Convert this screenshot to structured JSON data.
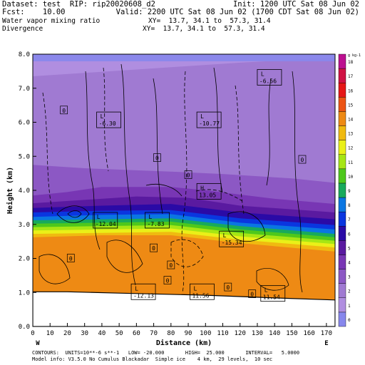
{
  "header": {
    "dataset": "Dataset: test  RIP: rip20020608_d2",
    "init": "Init: 1200 UTC Sat 08 Jun 02",
    "fcst": "Fcst:    10.00",
    "valid": "Valid: 2200 UTC Sat 08 Jun 02 (1700 CDT Sat 08 Jun 02)",
    "field1": "Water vapor mixing ratio",
    "xy1": "XY=  13.7, 34.1 to  57.3, 31.4",
    "field2": "Divergence",
    "xy2": "XY=  13.7, 34.1 to  57.3, 31.4"
  },
  "footer": {
    "line1": "CONTOURS:  UNITS=10**-6 s**-1   LOW= -20.000       HIGH=  25.000       INTERVAL=   5.0000",
    "line2": "Model info: V3.5.0 No Cumulus Blackadar  Simple ice    4 km,  29 levels,  10 sec"
  },
  "chart_data": {
    "type": "heatmap",
    "xlabel": "Distance (km)",
    "ylabel": "Height (km)",
    "xlim": [
      0,
      175
    ],
    "ylim": [
      0,
      8
    ],
    "x_ticks": [
      0,
      10,
      20,
      30,
      40,
      50,
      60,
      70,
      80,
      90,
      100,
      110,
      120,
      130,
      140,
      150,
      160,
      170
    ],
    "y_ticks": [
      "0.0",
      "1.0",
      "2.0",
      "3.0",
      "4.0",
      "5.0",
      "6.0",
      "7.0",
      "8.0"
    ],
    "left_end_label": "W",
    "right_end_label": "E",
    "colorbar": {
      "unit": "g kg-1",
      "levels": [
        0,
        1,
        2,
        3,
        4,
        5,
        6,
        7,
        8,
        9,
        10,
        11,
        12,
        13,
        14,
        15,
        16,
        17,
        18
      ],
      "colors": [
        "#8787ec",
        "#b08ee0",
        "#a07ad2",
        "#8c58c4",
        "#7836b4",
        "#5a1aa0",
        "#2a0aa6",
        "#0a36e0",
        "#0a76e2",
        "#18aa5c",
        "#4ec81c",
        "#a6e614",
        "#eaf018",
        "#f0ba10",
        "#ee8a14",
        "#ec5414",
        "#e61616",
        "#d01244",
        "#bc1090"
      ]
    },
    "terrain_km": [
      [
        0,
        1.02
      ],
      [
        20,
        1.02
      ],
      [
        50,
        0.98
      ],
      [
        100,
        0.92
      ],
      [
        140,
        0.84
      ],
      [
        175,
        0.78
      ]
    ],
    "moisture_layers": [
      {
        "name": "upper",
        "value": 1,
        "top": [
          [
            0,
            8.0
          ],
          [
            175,
            8.0
          ]
        ]
      },
      {
        "name": "mid",
        "value": 2,
        "top": [
          [
            0,
            7.35
          ],
          [
            60,
            7.55
          ],
          [
            120,
            7.75
          ],
          [
            175,
            7.9
          ]
        ]
      },
      {
        "name": "layer3",
        "value": 3,
        "top": [
          [
            0,
            4.75
          ],
          [
            30,
            4.65
          ],
          [
            80,
            4.55
          ],
          [
            110,
            4.48
          ],
          [
            150,
            4.35
          ],
          [
            175,
            4.22
          ]
        ]
      },
      {
        "name": "layer4",
        "value": 4,
        "top": [
          [
            0,
            3.85
          ],
          [
            20,
            3.95
          ],
          [
            40,
            4.1
          ],
          [
            80,
            4.1
          ],
          [
            100,
            4.0
          ],
          [
            140,
            3.75
          ],
          [
            175,
            3.6
          ]
        ]
      },
      {
        "name": "layer5",
        "value": 5,
        "top": [
          [
            0,
            3.62
          ],
          [
            30,
            3.72
          ],
          [
            60,
            3.82
          ],
          [
            90,
            3.78
          ],
          [
            120,
            3.55
          ],
          [
            175,
            3.35
          ]
        ]
      },
      {
        "name": "layer6",
        "value": 6,
        "top": [
          [
            0,
            3.48
          ],
          [
            40,
            3.55
          ],
          [
            80,
            3.6
          ],
          [
            120,
            3.35
          ],
          [
            175,
            3.15
          ]
        ]
      },
      {
        "name": "layer7",
        "value": 7,
        "top": [
          [
            0,
            3.35
          ],
          [
            40,
            3.4
          ],
          [
            80,
            3.42
          ],
          [
            120,
            3.18
          ],
          [
            175,
            2.98
          ]
        ]
      },
      {
        "name": "layer8",
        "value": 8,
        "top": [
          [
            0,
            3.22
          ],
          [
            40,
            3.28
          ],
          [
            80,
            3.3
          ],
          [
            120,
            3.05
          ],
          [
            175,
            2.85
          ]
        ]
      },
      {
        "name": "layer9",
        "value": 9,
        "top": [
          [
            0,
            3.12
          ],
          [
            40,
            3.15
          ],
          [
            80,
            3.18
          ],
          [
            120,
            2.95
          ],
          [
            175,
            2.72
          ]
        ]
      },
      {
        "name": "layer10",
        "value": 10,
        "top": [
          [
            0,
            3.02
          ],
          [
            40,
            3.05
          ],
          [
            80,
            3.08
          ],
          [
            120,
            2.85
          ],
          [
            175,
            2.62
          ]
        ]
      },
      {
        "name": "layer11",
        "value": 11,
        "top": [
          [
            0,
            2.92
          ],
          [
            40,
            2.95
          ],
          [
            80,
            2.98
          ],
          [
            120,
            2.75
          ],
          [
            175,
            2.52
          ]
        ]
      },
      {
        "name": "layer12",
        "value": 12,
        "top": [
          [
            0,
            2.82
          ],
          [
            40,
            2.85
          ],
          [
            80,
            2.88
          ],
          [
            120,
            2.65
          ],
          [
            175,
            2.42
          ]
        ]
      },
      {
        "name": "layer13",
        "value": 13,
        "top": [
          [
            0,
            2.72
          ],
          [
            40,
            2.75
          ],
          [
            80,
            2.78
          ],
          [
            120,
            2.55
          ],
          [
            175,
            2.32
          ]
        ]
      },
      {
        "name": "layer14",
        "value": 14,
        "top": [
          [
            0,
            2.62
          ],
          [
            40,
            2.68
          ],
          [
            80,
            2.68
          ],
          [
            120,
            2.45
          ],
          [
            175,
            2.2
          ]
        ]
      }
    ],
    "extrema_labels": [
      {
        "kind": "L",
        "value": "-6.56",
        "x": 137,
        "y": 7.3
      },
      {
        "kind": "L",
        "value": "-6.30",
        "x": 44,
        "y": 6.05
      },
      {
        "kind": "L",
        "value": "-10.77",
        "x": 102,
        "y": 6.05
      },
      {
        "kind": "H",
        "value": "13.05",
        "x": 102,
        "y": 3.95
      },
      {
        "kind": "L",
        "value": "-12.04",
        "x": 42,
        "y": 3.1
      },
      {
        "kind": "L",
        "value": "-7.83",
        "x": 72,
        "y": 3.1
      },
      {
        "kind": "L",
        "value": "-15.34",
        "x": 115,
        "y": 2.55
      },
      {
        "kind": "L",
        "value": "-12.13",
        "x": 64,
        "y": 1.0
      },
      {
        "kind": "L",
        "value": "11.56",
        "x": 98,
        "y": 1.0
      },
      {
        "kind": "L",
        "value": "11.54",
        "x": 139,
        "y": 0.95
      }
    ],
    "zero_labels": [
      {
        "text": "0",
        "x": 18,
        "y": 6.35
      },
      {
        "text": "0",
        "x": 72,
        "y": 4.95
      },
      {
        "text": "0",
        "x": 90,
        "y": 4.45
      },
      {
        "text": "0",
        "x": 156,
        "y": 4.9
      },
      {
        "text": "0",
        "x": 22,
        "y": 2.0
      },
      {
        "text": "0",
        "x": 70,
        "y": 2.3
      },
      {
        "text": "0",
        "x": 80,
        "y": 1.8
      },
      {
        "text": "0",
        "x": 78,
        "y": 1.35
      },
      {
        "text": "0",
        "x": 113,
        "y": 1.15
      },
      {
        "text": "0",
        "x": 127,
        "y": 0.95
      }
    ]
  }
}
